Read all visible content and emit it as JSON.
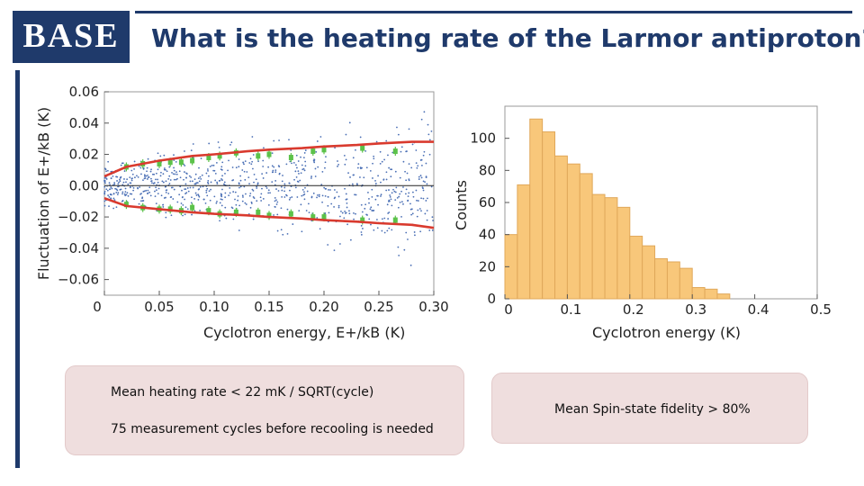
{
  "header": {
    "logo_text": "BASE",
    "title": "What is the heating rate of the Larmor antiproton?"
  },
  "chart_data": [
    {
      "type": "scatter",
      "title": "",
      "xlabel": "Cyclotron energy, E+/kB (K)",
      "ylabel": "Fluctuation of E+/kB (K)",
      "xlim": [
        0,
        0.3
      ],
      "ylim": [
        -0.07,
        0.06
      ],
      "x_ticks": [
        "0",
        "0.05",
        "0.10",
        "0.15",
        "0.20",
        "0.25",
        "0.30"
      ],
      "y_ticks": [
        "0.06",
        "0.04",
        "0.02",
        "0.00",
        "−0.02",
        "−0.04",
        "−0.06"
      ],
      "series": [
        {
          "role": "fit-upper",
          "color": "#d93a2e",
          "x": [
            0.0,
            0.02,
            0.05,
            0.08,
            0.1,
            0.13,
            0.15,
            0.18,
            0.2,
            0.23,
            0.25,
            0.28,
            0.3
          ],
          "y": [
            0.006,
            0.012,
            0.016,
            0.019,
            0.02,
            0.022,
            0.023,
            0.024,
            0.025,
            0.026,
            0.027,
            0.028,
            0.028
          ]
        },
        {
          "role": "fit-lower",
          "color": "#d93a2e",
          "x": [
            0.0,
            0.02,
            0.05,
            0.08,
            0.1,
            0.13,
            0.15,
            0.18,
            0.2,
            0.23,
            0.25,
            0.28,
            0.3
          ],
          "y": [
            -0.008,
            -0.013,
            -0.015,
            -0.017,
            -0.018,
            -0.019,
            -0.02,
            -0.021,
            -0.022,
            -0.023,
            -0.024,
            -0.025,
            -0.027
          ]
        },
        {
          "role": "binned-upper",
          "color": "#5cc24a",
          "x": [
            0.02,
            0.035,
            0.05,
            0.06,
            0.07,
            0.08,
            0.095,
            0.105,
            0.12,
            0.14,
            0.15,
            0.17,
            0.19,
            0.2,
            0.235,
            0.265
          ],
          "y": [
            0.012,
            0.014,
            0.014,
            0.015,
            0.015,
            0.016,
            0.018,
            0.019,
            0.021,
            0.019,
            0.02,
            0.018,
            0.022,
            0.023,
            0.024,
            0.022
          ]
        },
        {
          "role": "binned-lower",
          "color": "#5cc24a",
          "x": [
            0.02,
            0.035,
            0.05,
            0.06,
            0.07,
            0.08,
            0.095,
            0.105,
            0.12,
            0.14,
            0.15,
            0.17,
            0.19,
            0.2,
            0.235,
            0.265
          ],
          "y": [
            -0.012,
            -0.014,
            -0.015,
            -0.015,
            -0.016,
            -0.014,
            -0.016,
            -0.018,
            -0.017,
            -0.017,
            -0.019,
            -0.018,
            -0.02,
            -0.02,
            -0.022,
            -0.022
          ]
        }
      ],
      "scatter_points": {
        "color": "#4a6fb5",
        "count": 900,
        "x_range": [
          0.0,
          0.3
        ],
        "note_distribution": "dense near zero fluctuation, spread widens with energy"
      },
      "reference_line_y": 0.0
    },
    {
      "type": "bar",
      "title": "",
      "xlabel": "Cyclotron energy (K)",
      "ylabel": "Counts",
      "xlim": [
        0,
        0.5
      ],
      "ylim": [
        0,
        120
      ],
      "x_ticks": [
        "0",
        "0.1",
        "0.2",
        "0.3",
        "0.4",
        "0.5"
      ],
      "y_ticks": [
        "0",
        "20",
        "40",
        "60",
        "80",
        "100"
      ],
      "bin_width": 0.02,
      "bin_starts": [
        0.0,
        0.02,
        0.04,
        0.06,
        0.08,
        0.1,
        0.12,
        0.14,
        0.16,
        0.18,
        0.2,
        0.22,
        0.24,
        0.26,
        0.28,
        0.3,
        0.32,
        0.34,
        0.36,
        0.38
      ],
      "values": [
        40,
        71,
        112,
        104,
        89,
        84,
        78,
        65,
        63,
        57,
        39,
        33,
        25,
        23,
        19,
        7,
        6,
        3,
        0,
        0
      ],
      "color": "#f8c77a",
      "edge_color": "#e0a85a"
    }
  ],
  "notes": {
    "left": {
      "line1": "Mean heating rate < 22 mK / SQRT(cycle)",
      "line2": "75 measurement cycles before recooling is needed"
    },
    "right": {
      "line1": "Mean Spin-state fidelity > 80%"
    }
  }
}
